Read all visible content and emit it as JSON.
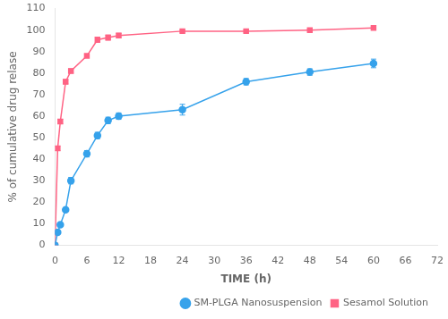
{
  "chart_data": {
    "type": "line",
    "xlabel": "TIME (h)",
    "ylabel": "% of cumulative drug relase",
    "x": [
      0,
      0.5,
      1,
      2,
      3,
      6,
      8,
      10,
      12,
      24,
      36,
      48,
      60
    ],
    "series": [
      {
        "name": "SM-PLGA Nanosuspension",
        "marker": "circle",
        "values": [
          0,
          6,
          9.5,
          16.5,
          30,
          42.5,
          51,
          58,
          60,
          63,
          76,
          80.5,
          84.5
        ],
        "errors": [
          0,
          0.4,
          0.4,
          0.8,
          1.5,
          1.5,
          1.5,
          1.5,
          1.5,
          2.5,
          1.5,
          1.5,
          2.0
        ]
      },
      {
        "name": "Sesamol Solution",
        "marker": "square",
        "values": [
          0,
          45,
          57.5,
          76,
          81,
          88,
          95.5,
          96.5,
          97.5,
          99.5,
          99.5,
          100,
          101
        ],
        "errors": [
          0,
          1.0,
          1.0,
          1.0,
          1.0,
          0.8,
          1.2,
          1.2,
          1.0,
          0.5,
          0.5,
          0.5,
          0.5
        ]
      }
    ],
    "xlim": [
      0,
      72
    ],
    "ylim": [
      0,
      110
    ],
    "xticks": [
      0,
      6,
      12,
      18,
      24,
      30,
      36,
      42,
      48,
      54,
      60,
      66,
      72
    ],
    "yticks": [
      0,
      10,
      20,
      30,
      40,
      50,
      60,
      70,
      80,
      90,
      100,
      110
    ],
    "grid": false,
    "legend": "lower right"
  }
}
